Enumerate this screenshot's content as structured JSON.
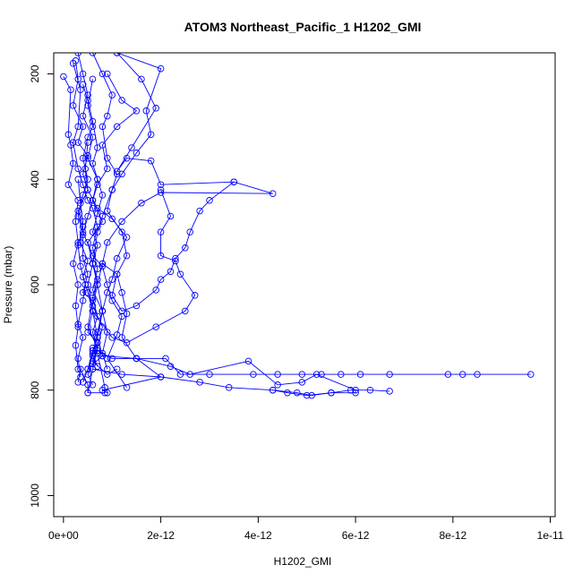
{
  "chart_data": {
    "type": "line",
    "title": "ATOM3 Northeast_Pacific_1 H1202_GMI",
    "xlabel": "H1202_GMI",
    "ylabel": "Pressure (mbar)",
    "xlim": [
      -2e-13,
      1.01e-11
    ],
    "ylim": [
      1040,
      160
    ],
    "y_reversed": true,
    "grid": false,
    "legend": "none",
    "marker": "open-circle",
    "color": "#0000ff",
    "x_ticks": [
      {
        "value": 0,
        "label": "0e+00"
      },
      {
        "value": 2e-12,
        "label": "2e-12"
      },
      {
        "value": 4e-12,
        "label": "4e-12"
      },
      {
        "value": 6e-12,
        "label": "6e-12"
      },
      {
        "value": 8e-12,
        "label": "8e-12"
      },
      {
        "value": 1e-11,
        "label": "1e-11"
      }
    ],
    "y_ticks": [
      {
        "value": 200,
        "label": "200"
      },
      {
        "value": 400,
        "label": "400"
      },
      {
        "value": 600,
        "label": "600"
      },
      {
        "value": 800,
        "label": "800"
      },
      {
        "value": 1000,
        "label": "1000"
      }
    ],
    "series": [
      {
        "values": [
          [
            3e-13,
            160
          ],
          [
            4e-13,
            200
          ],
          [
            5e-13,
            240
          ],
          [
            4e-13,
            280
          ],
          [
            6e-13,
            320
          ],
          [
            5e-13,
            360
          ],
          [
            7e-13,
            400
          ],
          [
            6e-13,
            440
          ],
          [
            8e-13,
            480
          ],
          [
            5e-13,
            520
          ],
          [
            6e-13,
            560
          ],
          [
            7e-13,
            600
          ],
          [
            6e-13,
            640
          ],
          [
            8e-13,
            680
          ],
          [
            7e-13,
            720
          ],
          [
            6e-13,
            760
          ],
          [
            5e-13,
            805
          ]
        ]
      },
      {
        "values": [
          [
            6e-13,
            160
          ],
          [
            8e-13,
            200
          ],
          [
            1e-12,
            240
          ],
          [
            9e-13,
            280
          ],
          [
            8e-13,
            300
          ],
          [
            9e-13,
            360
          ],
          [
            1.1e-12,
            390
          ],
          [
            1e-12,
            420
          ],
          [
            9e-13,
            460
          ],
          [
            1.2e-12,
            500
          ],
          [
            1.3e-12,
            545
          ],
          [
            1.1e-12,
            580
          ],
          [
            1.2e-12,
            615
          ],
          [
            1.3e-12,
            655
          ],
          [
            1.2e-12,
            700
          ],
          [
            1.5e-12,
            740
          ],
          [
            2e-12,
            775
          ],
          [
            8e-13,
            800
          ],
          [
            9e-13,
            805
          ]
        ]
      },
      {
        "values": [
          [
            1.1e-12,
            160
          ],
          [
            1.6e-12,
            210
          ],
          [
            1.9e-12,
            265
          ],
          [
            1.4e-12,
            340
          ],
          [
            1.1e-12,
            385
          ],
          [
            1.3e-12,
            360
          ],
          [
            1.8e-12,
            365
          ],
          [
            2e-12,
            410
          ],
          [
            3.5e-12,
            405
          ],
          [
            4.3e-12,
            427
          ],
          [
            2e-12,
            425
          ],
          [
            1.6e-12,
            445
          ],
          [
            1.2e-12,
            480
          ],
          [
            9e-13,
            520
          ],
          [
            8e-13,
            560
          ],
          [
            7e-13,
            600
          ],
          [
            8e-13,
            650
          ],
          [
            7e-13,
            700
          ],
          [
            6e-13,
            725
          ],
          [
            5e-13,
            760
          ],
          [
            4e-13,
            785
          ]
        ]
      },
      {
        "values": [
          [
            1.1e-12,
            160
          ],
          [
            2e-12,
            190
          ],
          [
            1.7e-12,
            270
          ],
          [
            1.8e-12,
            315
          ],
          [
            1.5e-12,
            350
          ],
          [
            1.2e-12,
            390
          ],
          [
            1e-12,
            420
          ],
          [
            8e-13,
            470
          ],
          [
            7e-13,
            500
          ],
          [
            6e-13,
            560
          ],
          [
            5e-13,
            600
          ],
          [
            6e-13,
            650
          ],
          [
            7e-13,
            700
          ],
          [
            8e-13,
            735
          ],
          [
            5e-13,
            760
          ]
        ]
      },
      {
        "values": [
          [
            9e-13,
            200
          ],
          [
            1.2e-12,
            250
          ],
          [
            1.5e-12,
            270
          ],
          [
            1.1e-12,
            300
          ],
          [
            8e-13,
            335
          ],
          [
            9e-13,
            380
          ],
          [
            7e-13,
            410
          ],
          [
            6e-13,
            440
          ],
          [
            5e-13,
            470
          ],
          [
            4e-13,
            505
          ],
          [
            4e-13,
            550
          ],
          [
            5e-13,
            580
          ],
          [
            4e-13,
            615
          ],
          [
            6e-13,
            630
          ],
          [
            5e-13,
            680
          ],
          [
            7e-13,
            720
          ],
          [
            6e-13,
            745
          ],
          [
            9e-13,
            770
          ],
          [
            1.1e-12,
            760
          ]
        ]
      },
      {
        "values": [
          [
            2.5e-13,
            175
          ],
          [
            3e-13,
            210
          ],
          [
            2e-13,
            260
          ],
          [
            4e-13,
            300
          ],
          [
            3e-13,
            330
          ],
          [
            5e-13,
            355
          ],
          [
            4e-13,
            390
          ],
          [
            5e-13,
            420
          ],
          [
            3e-13,
            460
          ],
          [
            4e-13,
            490
          ],
          [
            3e-13,
            525
          ],
          [
            3.5e-13,
            565
          ],
          [
            4.5e-13,
            600
          ],
          [
            4e-13,
            630
          ],
          [
            3e-13,
            675
          ],
          [
            4e-13,
            700
          ],
          [
            3e-13,
            740
          ],
          [
            3.5e-13,
            775
          ]
        ]
      },
      {
        "values": [
          [
            2e-13,
            180
          ],
          [
            3.5e-13,
            230
          ],
          [
            3e-13,
            300
          ],
          [
            2e-13,
            330
          ],
          [
            3e-13,
            380
          ],
          [
            4e-13,
            410
          ],
          [
            5e-13,
            440
          ],
          [
            6e-13,
            455
          ],
          [
            7e-13,
            490
          ],
          [
            6e-13,
            530
          ],
          [
            7e-13,
            570
          ],
          [
            6e-13,
            610
          ],
          [
            8e-13,
            650
          ],
          [
            7e-13,
            690
          ],
          [
            6e-13,
            730
          ],
          [
            5e-13,
            770
          ],
          [
            6e-13,
            790
          ]
        ]
      },
      {
        "values": [
          [
            6e-13,
            210
          ],
          [
            5e-13,
            260
          ],
          [
            6e-13,
            300
          ],
          [
            5e-13,
            320
          ],
          [
            4e-13,
            360
          ],
          [
            5e-13,
            400
          ],
          [
            4e-13,
            430
          ],
          [
            3e-13,
            470
          ],
          [
            4e-13,
            500
          ],
          [
            6e-13,
            545
          ],
          [
            8e-13,
            565
          ],
          [
            9e-13,
            600
          ],
          [
            1e-12,
            630
          ],
          [
            1.2e-12,
            660
          ],
          [
            1.1e-12,
            695
          ],
          [
            9e-13,
            740
          ],
          [
            1.3e-12,
            795
          ]
        ]
      },
      {
        "values": [
          [
            0.0,
            205
          ],
          [
            1.5e-13,
            230
          ],
          [
            1e-13,
            315
          ],
          [
            1.5e-13,
            335
          ],
          [
            2e-13,
            370
          ],
          [
            1e-13,
            410
          ],
          [
            3e-13,
            440
          ],
          [
            2.5e-13,
            480
          ],
          [
            3e-13,
            520
          ],
          [
            2e-13,
            560
          ],
          [
            3e-13,
            600
          ],
          [
            2.5e-13,
            640
          ],
          [
            3e-13,
            680
          ],
          [
            2.5e-13,
            715
          ],
          [
            3e-13,
            760
          ]
        ]
      },
      {
        "values": [
          [
            4e-13,
            220
          ],
          [
            5e-13,
            250
          ],
          [
            6e-13,
            290
          ],
          [
            7e-13,
            340
          ],
          [
            6e-13,
            370
          ],
          [
            7e-13,
            400
          ],
          [
            8e-13,
            430
          ],
          [
            7e-13,
            465
          ],
          [
            6e-13,
            500
          ],
          [
            7e-13,
            525
          ],
          [
            6e-13,
            560
          ],
          [
            7e-13,
            590
          ],
          [
            6e-13,
            625
          ],
          [
            7e-13,
            660
          ],
          [
            6e-13,
            690
          ],
          [
            7e-13,
            725
          ],
          [
            6e-13,
            750
          ]
        ]
      },
      {
        "values": [
          [
            5e-13,
            330
          ],
          [
            4.5e-13,
            380
          ],
          [
            5e-13,
            420
          ],
          [
            7e-13,
            455
          ],
          [
            1e-12,
            475
          ],
          [
            1.3e-12,
            510
          ],
          [
            1.1e-12,
            550
          ],
          [
            1e-12,
            590
          ],
          [
            9e-13,
            615
          ],
          [
            8e-13,
            650
          ],
          [
            9e-13,
            690
          ],
          [
            8e-13,
            730
          ],
          [
            9e-13,
            760
          ]
        ]
      },
      {
        "values": [
          [
            3e-13,
            400
          ],
          [
            3.5e-13,
            445
          ],
          [
            4e-13,
            480
          ],
          [
            3.5e-13,
            520
          ],
          [
            5e-13,
            555
          ],
          [
            4e-13,
            585
          ],
          [
            5e-13,
            615
          ],
          [
            6e-13,
            650
          ],
          [
            5e-13,
            690
          ],
          [
            7e-13,
            710
          ],
          [
            6e-13,
            735
          ],
          [
            7e-13,
            755
          ]
        ]
      },
      {
        "values": [
          [
            8e-13,
            560
          ],
          [
            1.1e-12,
            580
          ],
          [
            1e-12,
            620
          ],
          [
            1.2e-12,
            650
          ],
          [
            1.5e-12,
            640
          ],
          [
            1.9e-12,
            610
          ],
          [
            2e-12,
            590
          ],
          [
            2.2e-12,
            575
          ],
          [
            2.3e-12,
            550
          ],
          [
            2.5e-12,
            530
          ],
          [
            2.6e-12,
            500
          ],
          [
            2.8e-12,
            460
          ],
          [
            3e-12,
            440
          ],
          [
            3.5e-12,
            405
          ]
        ]
      },
      {
        "values": [
          [
            6e-13,
            650
          ],
          [
            1e-12,
            700
          ],
          [
            1.3e-12,
            710
          ],
          [
            1.9e-12,
            680
          ],
          [
            2.5e-12,
            650
          ],
          [
            2.7e-12,
            620
          ],
          [
            2.4e-12,
            580
          ],
          [
            2.3e-12,
            555
          ],
          [
            2e-12,
            545
          ],
          [
            2e-12,
            500
          ],
          [
            2.2e-12,
            470
          ],
          [
            2e-12,
            420
          ]
        ]
      },
      {
        "values": [
          [
            6e-13,
            720
          ],
          [
            1e-12,
            740
          ],
          [
            1.5e-12,
            740
          ],
          [
            2.1e-12,
            740
          ],
          [
            2.4e-12,
            770
          ],
          [
            3e-12,
            770
          ],
          [
            3.9e-12,
            770
          ],
          [
            4.4e-12,
            770
          ],
          [
            4.9e-12,
            770
          ],
          [
            5.3e-12,
            770
          ],
          [
            5.7e-12,
            770
          ],
          [
            6.1e-12,
            770
          ],
          [
            6.7e-12,
            770
          ],
          [
            7.9e-12,
            770
          ],
          [
            8.2e-12,
            770
          ],
          [
            8.5e-12,
            770
          ],
          [
            9.6e-12,
            770
          ]
        ]
      },
      {
        "values": [
          [
            6e-13,
            760
          ],
          [
            1.2e-12,
            770
          ],
          [
            2e-12,
            775
          ],
          [
            2.8e-12,
            785
          ],
          [
            3.4e-12,
            795
          ],
          [
            4.3e-12,
            800
          ],
          [
            4.8e-12,
            805
          ],
          [
            5.1e-12,
            810
          ],
          [
            5.5e-12,
            805
          ],
          [
            5.9e-12,
            800
          ],
          [
            6.3e-12,
            800
          ],
          [
            6.7e-12,
            802
          ]
        ]
      },
      {
        "values": [
          [
            8e-13,
            735
          ],
          [
            1.5e-12,
            740
          ],
          [
            2.2e-12,
            755
          ],
          [
            2.6e-12,
            770
          ],
          [
            3.8e-12,
            745
          ],
          [
            4.4e-12,
            790
          ],
          [
            4.9e-12,
            785
          ],
          [
            5.2e-12,
            770
          ],
          [
            6e-12,
            800
          ],
          [
            6e-12,
            805
          ],
          [
            5.5e-12,
            805
          ],
          [
            5e-12,
            810
          ],
          [
            4.6e-12,
            805
          ],
          [
            4.3e-12,
            800
          ]
        ]
      },
      {
        "values": [
          [
            3e-13,
            785
          ],
          [
            3.5e-13,
            760
          ],
          [
            5e-13,
            790
          ],
          [
            5e-13,
            805
          ],
          [
            8.5e-13,
            805
          ],
          [
            8.5e-13,
            795
          ],
          [
            7e-13,
            730
          ],
          [
            6e-13,
            725
          ]
        ]
      }
    ]
  }
}
